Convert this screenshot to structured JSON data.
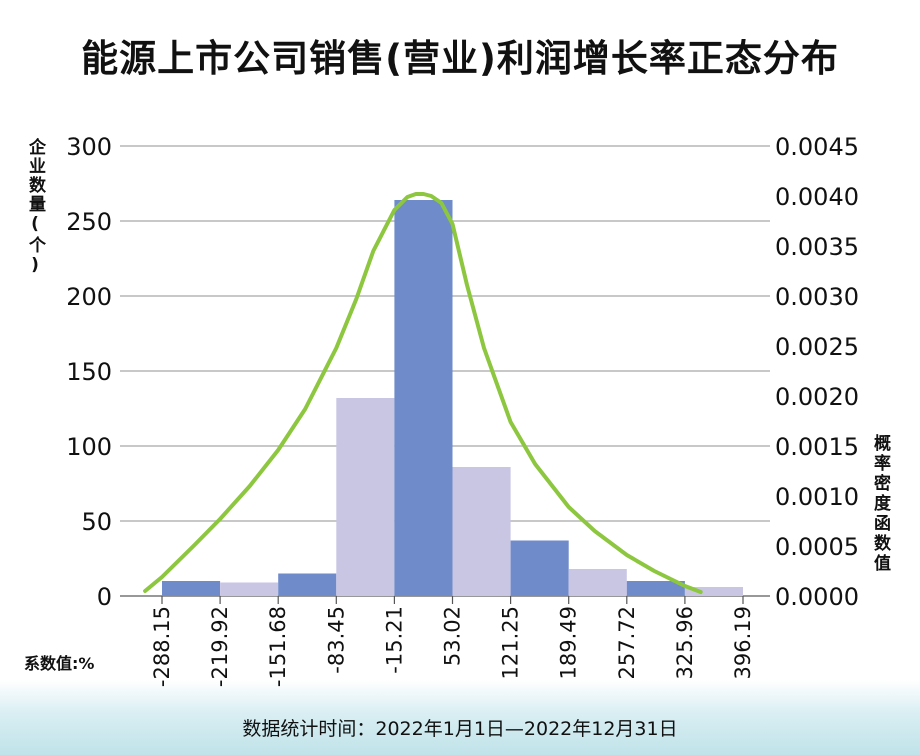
{
  "title": "能源上市公司销售(营业)利润增长率正态分布",
  "left_axis_label": "企业数量(个)",
  "right_axis_label": "概率密度函数值",
  "x_caption": "系数值:%",
  "footnote": "数据统计时间：2022年1月1日—2022年12月31日",
  "colors": {
    "bar_dark": "#6f8bc9",
    "bar_light": "#c9c6e4",
    "curve": "#8dc63f",
    "grid": "#b5b5b5"
  },
  "chart_data": {
    "type": "bar",
    "title": "能源上市公司销售(营业)利润增长率正态分布",
    "xlabel": "系数值:%",
    "ylabel": "企业数量(个)",
    "y2label": "概率密度函数值",
    "x_ticks": [
      "-288.15",
      "-219.92",
      "-151.68",
      "-83.45",
      "-15.21",
      "53.02",
      "121.25",
      "189.49",
      "257.72",
      "325.96",
      "396.19"
    ],
    "bins": [
      {
        "from": -288.15,
        "to": -219.92,
        "count": 10
      },
      {
        "from": -219.92,
        "to": -151.68,
        "count": 9
      },
      {
        "from": -151.68,
        "to": -83.45,
        "count": 15
      },
      {
        "from": -83.45,
        "to": -15.21,
        "count": 132
      },
      {
        "from": -15.21,
        "to": 53.02,
        "count": 264
      },
      {
        "from": 53.02,
        "to": 121.25,
        "count": 86
      },
      {
        "from": 121.25,
        "to": 189.49,
        "count": 37
      },
      {
        "from": 189.49,
        "to": 257.72,
        "count": 18
      },
      {
        "from": 257.72,
        "to": 325.96,
        "count": 10
      },
      {
        "from": 325.96,
        "to": 396.19,
        "count": 6
      }
    ],
    "ylim": [
      0,
      300
    ],
    "yticks": [
      0,
      50,
      100,
      150,
      200,
      250,
      300
    ],
    "y2lim": [
      0,
      0.0045
    ],
    "y2ticks": [
      "0.0000",
      "0.0005",
      "0.0010",
      "0.0015",
      "0.0020",
      "0.0025",
      "0.0030",
      "0.0035",
      "0.0040",
      "0.0045"
    ],
    "density_curve": {
      "x": [
        -308,
        -288.15,
        -250,
        -219.92,
        -185,
        -151.68,
        -120,
        -83.45,
        -60,
        -40,
        -15.21,
        0,
        10,
        19,
        28,
        40,
        53.02,
        70,
        90,
        121.25,
        150,
        189.49,
        220,
        257.72,
        290,
        325.96,
        345
      ],
      "y": [
        5e-05,
        0.00019,
        0.00051,
        0.00077,
        0.0011,
        0.00146,
        0.00187,
        0.00248,
        0.00297,
        0.00345,
        0.00386,
        0.00399,
        0.00402,
        0.00402,
        0.004,
        0.00393,
        0.00372,
        0.00311,
        0.00248,
        0.00174,
        0.00132,
        0.00089,
        0.00065,
        0.00041,
        0.00025,
        0.0001,
        4e-05
      ]
    },
    "grid": true,
    "legend": "none"
  }
}
